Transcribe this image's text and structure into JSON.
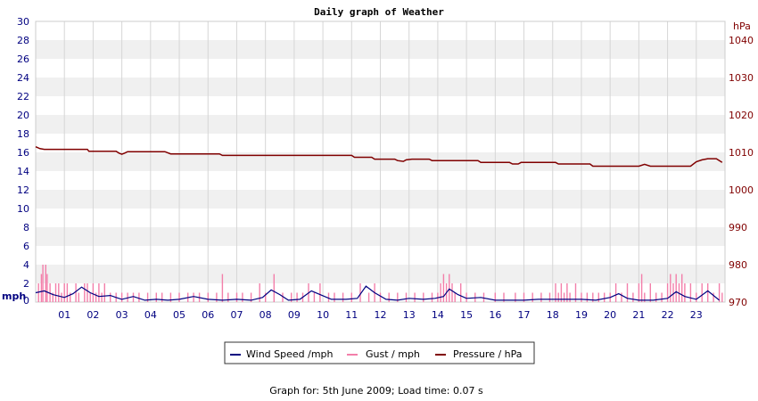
{
  "chart_data": {
    "type": "line",
    "title": "Daily graph of Weather",
    "x_ticks": [
      "01",
      "02",
      "03",
      "04",
      "05",
      "06",
      "07",
      "08",
      "09",
      "10",
      "11",
      "12",
      "13",
      "14",
      "15",
      "16",
      "17",
      "18",
      "19",
      "20",
      "21",
      "22",
      "23"
    ],
    "x_range": [
      0,
      24
    ],
    "left_axis": {
      "unit": "mph",
      "range": [
        0,
        30
      ],
      "ticks": [
        0,
        2,
        4,
        6,
        8,
        10,
        12,
        14,
        16,
        18,
        20,
        22,
        24,
        26,
        28,
        30
      ]
    },
    "right_axis": {
      "unit": "hPa",
      "range": [
        970,
        1045
      ],
      "ticks": [
        970,
        980,
        990,
        1000,
        1010,
        1020,
        1030,
        1040
      ]
    },
    "grid": true,
    "colors": {
      "wind": "#000080",
      "gust": "#f37faa",
      "pressure": "#800000"
    },
    "series": [
      {
        "name": "Wind Speed /mph",
        "axis": "left",
        "points": [
          [
            0,
            1.0
          ],
          [
            0.3,
            1.2
          ],
          [
            0.6,
            0.8
          ],
          [
            1.0,
            0.5
          ],
          [
            1.3,
            0.9
          ],
          [
            1.6,
            1.6
          ],
          [
            1.9,
            1.0
          ],
          [
            2.2,
            0.6
          ],
          [
            2.6,
            0.7
          ],
          [
            3.0,
            0.3
          ],
          [
            3.4,
            0.6
          ],
          [
            3.8,
            0.2
          ],
          [
            4.2,
            0.3
          ],
          [
            4.6,
            0.2
          ],
          [
            5.0,
            0.3
          ],
          [
            5.5,
            0.6
          ],
          [
            6.0,
            0.3
          ],
          [
            6.5,
            0.2
          ],
          [
            7.0,
            0.3
          ],
          [
            7.5,
            0.2
          ],
          [
            7.9,
            0.5
          ],
          [
            8.2,
            1.3
          ],
          [
            8.5,
            0.8
          ],
          [
            8.8,
            0.2
          ],
          [
            9.2,
            0.3
          ],
          [
            9.6,
            1.2
          ],
          [
            9.9,
            0.8
          ],
          [
            10.3,
            0.3
          ],
          [
            10.8,
            0.3
          ],
          [
            11.2,
            0.4
          ],
          [
            11.5,
            1.7
          ],
          [
            11.8,
            1.0
          ],
          [
            12.2,
            0.3
          ],
          [
            12.6,
            0.2
          ],
          [
            13.0,
            0.4
          ],
          [
            13.5,
            0.3
          ],
          [
            13.9,
            0.4
          ],
          [
            14.2,
            0.6
          ],
          [
            14.4,
            1.4
          ],
          [
            14.7,
            0.8
          ],
          [
            15.0,
            0.4
          ],
          [
            15.5,
            0.5
          ],
          [
            16.0,
            0.2
          ],
          [
            16.5,
            0.2
          ],
          [
            17.0,
            0.2
          ],
          [
            17.5,
            0.3
          ],
          [
            18.0,
            0.3
          ],
          [
            18.5,
            0.3
          ],
          [
            19.0,
            0.3
          ],
          [
            19.5,
            0.2
          ],
          [
            20.0,
            0.5
          ],
          [
            20.3,
            0.9
          ],
          [
            20.6,
            0.4
          ],
          [
            21.0,
            0.2
          ],
          [
            21.5,
            0.2
          ],
          [
            22.0,
            0.4
          ],
          [
            22.3,
            1.1
          ],
          [
            22.6,
            0.6
          ],
          [
            23.0,
            0.3
          ],
          [
            23.4,
            1.2
          ],
          [
            23.8,
            0.2
          ]
        ]
      },
      {
        "name": "Gust / mph",
        "axis": "left",
        "spikes": [
          [
            0.1,
            2
          ],
          [
            0.2,
            3
          ],
          [
            0.25,
            4
          ],
          [
            0.35,
            4
          ],
          [
            0.4,
            3
          ],
          [
            0.5,
            2
          ],
          [
            0.6,
            1
          ],
          [
            0.7,
            2
          ],
          [
            0.8,
            2
          ],
          [
            0.9,
            1
          ],
          [
            1.0,
            2
          ],
          [
            1.1,
            2
          ],
          [
            1.2,
            1
          ],
          [
            1.4,
            2
          ],
          [
            1.5,
            1
          ],
          [
            1.7,
            2
          ],
          [
            1.8,
            2
          ],
          [
            1.9,
            1
          ],
          [
            2.0,
            2
          ],
          [
            2.1,
            1
          ],
          [
            2.2,
            2
          ],
          [
            2.3,
            1
          ],
          [
            2.4,
            2
          ],
          [
            2.6,
            1
          ],
          [
            2.8,
            1
          ],
          [
            3.0,
            1
          ],
          [
            3.2,
            1
          ],
          [
            3.4,
            1
          ],
          [
            3.6,
            1
          ],
          [
            3.9,
            1
          ],
          [
            4.2,
            1
          ],
          [
            4.4,
            1
          ],
          [
            4.7,
            1
          ],
          [
            5.0,
            1
          ],
          [
            5.3,
            1
          ],
          [
            5.5,
            1
          ],
          [
            5.7,
            1
          ],
          [
            6.0,
            1
          ],
          [
            6.3,
            1
          ],
          [
            6.5,
            3
          ],
          [
            6.7,
            1
          ],
          [
            7.0,
            1
          ],
          [
            7.2,
            1
          ],
          [
            7.5,
            1
          ],
          [
            7.8,
            2
          ],
          [
            8.0,
            1
          ],
          [
            8.3,
            3
          ],
          [
            8.6,
            1
          ],
          [
            8.9,
            1
          ],
          [
            9.1,
            1
          ],
          [
            9.3,
            1
          ],
          [
            9.5,
            2
          ],
          [
            9.7,
            1
          ],
          [
            9.9,
            2
          ],
          [
            10.2,
            1
          ],
          [
            10.4,
            1
          ],
          [
            10.7,
            1
          ],
          [
            11.0,
            1
          ],
          [
            11.3,
            2
          ],
          [
            11.6,
            1
          ],
          [
            11.8,
            2
          ],
          [
            12.0,
            1
          ],
          [
            12.3,
            1
          ],
          [
            12.6,
            1
          ],
          [
            12.9,
            1
          ],
          [
            13.2,
            1
          ],
          [
            13.5,
            1
          ],
          [
            13.8,
            1
          ],
          [
            14.0,
            1
          ],
          [
            14.1,
            2
          ],
          [
            14.2,
            3
          ],
          [
            14.3,
            2
          ],
          [
            14.4,
            3
          ],
          [
            14.5,
            2
          ],
          [
            14.6,
            1
          ],
          [
            14.8,
            2
          ],
          [
            15.0,
            1
          ],
          [
            15.3,
            1
          ],
          [
            15.6,
            1
          ],
          [
            16.0,
            1
          ],
          [
            16.3,
            1
          ],
          [
            16.7,
            1
          ],
          [
            17.0,
            1
          ],
          [
            17.3,
            1
          ],
          [
            17.6,
            1
          ],
          [
            17.9,
            1
          ],
          [
            18.1,
            2
          ],
          [
            18.2,
            1
          ],
          [
            18.3,
            2
          ],
          [
            18.4,
            1
          ],
          [
            18.5,
            2
          ],
          [
            18.6,
            1
          ],
          [
            18.8,
            2
          ],
          [
            19.0,
            1
          ],
          [
            19.2,
            1
          ],
          [
            19.4,
            1
          ],
          [
            19.6,
            1
          ],
          [
            19.8,
            1
          ],
          [
            20.0,
            1
          ],
          [
            20.2,
            2
          ],
          [
            20.4,
            1
          ],
          [
            20.6,
            2
          ],
          [
            20.8,
            1
          ],
          [
            21.0,
            2
          ],
          [
            21.1,
            3
          ],
          [
            21.2,
            1
          ],
          [
            21.4,
            2
          ],
          [
            21.6,
            1
          ],
          [
            21.8,
            1
          ],
          [
            22.0,
            2
          ],
          [
            22.1,
            3
          ],
          [
            22.2,
            2
          ],
          [
            22.3,
            3
          ],
          [
            22.4,
            2
          ],
          [
            22.5,
            3
          ],
          [
            22.6,
            2
          ],
          [
            22.8,
            2
          ],
          [
            23.0,
            1
          ],
          [
            23.2,
            2
          ],
          [
            23.4,
            2
          ],
          [
            23.6,
            1
          ],
          [
            23.8,
            2
          ],
          [
            23.9,
            1
          ]
        ]
      },
      {
        "name": "Pressure / hPa",
        "axis": "right",
        "points": [
          [
            0,
            1011.5
          ],
          [
            0.15,
            1011
          ],
          [
            0.3,
            1010.8
          ],
          [
            1.8,
            1010.8
          ],
          [
            1.85,
            1010.3
          ],
          [
            2.8,
            1010.3
          ],
          [
            2.9,
            1009.8
          ],
          [
            3.0,
            1009.5
          ],
          [
            3.1,
            1009.8
          ],
          [
            3.2,
            1010.2
          ],
          [
            4.5,
            1010.2
          ],
          [
            4.7,
            1009.6
          ],
          [
            6.4,
            1009.6
          ],
          [
            6.5,
            1009.2
          ],
          [
            11.0,
            1009.2
          ],
          [
            11.1,
            1008.7
          ],
          [
            11.7,
            1008.7
          ],
          [
            11.8,
            1008.2
          ],
          [
            12.5,
            1008.2
          ],
          [
            12.6,
            1007.8
          ],
          [
            12.8,
            1007.6
          ],
          [
            12.9,
            1008.0
          ],
          [
            13.1,
            1008.2
          ],
          [
            13.7,
            1008.2
          ],
          [
            13.8,
            1007.8
          ],
          [
            15.4,
            1007.8
          ],
          [
            15.5,
            1007.3
          ],
          [
            16.5,
            1007.3
          ],
          [
            16.6,
            1006.9
          ],
          [
            16.8,
            1006.9
          ],
          [
            16.9,
            1007.3
          ],
          [
            18.1,
            1007.3
          ],
          [
            18.2,
            1006.9
          ],
          [
            19.3,
            1006.9
          ],
          [
            19.4,
            1006.3
          ],
          [
            21.0,
            1006.3
          ],
          [
            21.2,
            1006.8
          ],
          [
            21.4,
            1006.3
          ],
          [
            22.8,
            1006.3
          ],
          [
            23.0,
            1007.5
          ],
          [
            23.2,
            1008.0
          ],
          [
            23.4,
            1008.3
          ],
          [
            23.7,
            1008.3
          ],
          [
            23.9,
            1007.3
          ]
        ]
      }
    ]
  },
  "footer": {
    "text": "Graph for: 5th June 2009; Load time: 0.07 s"
  }
}
